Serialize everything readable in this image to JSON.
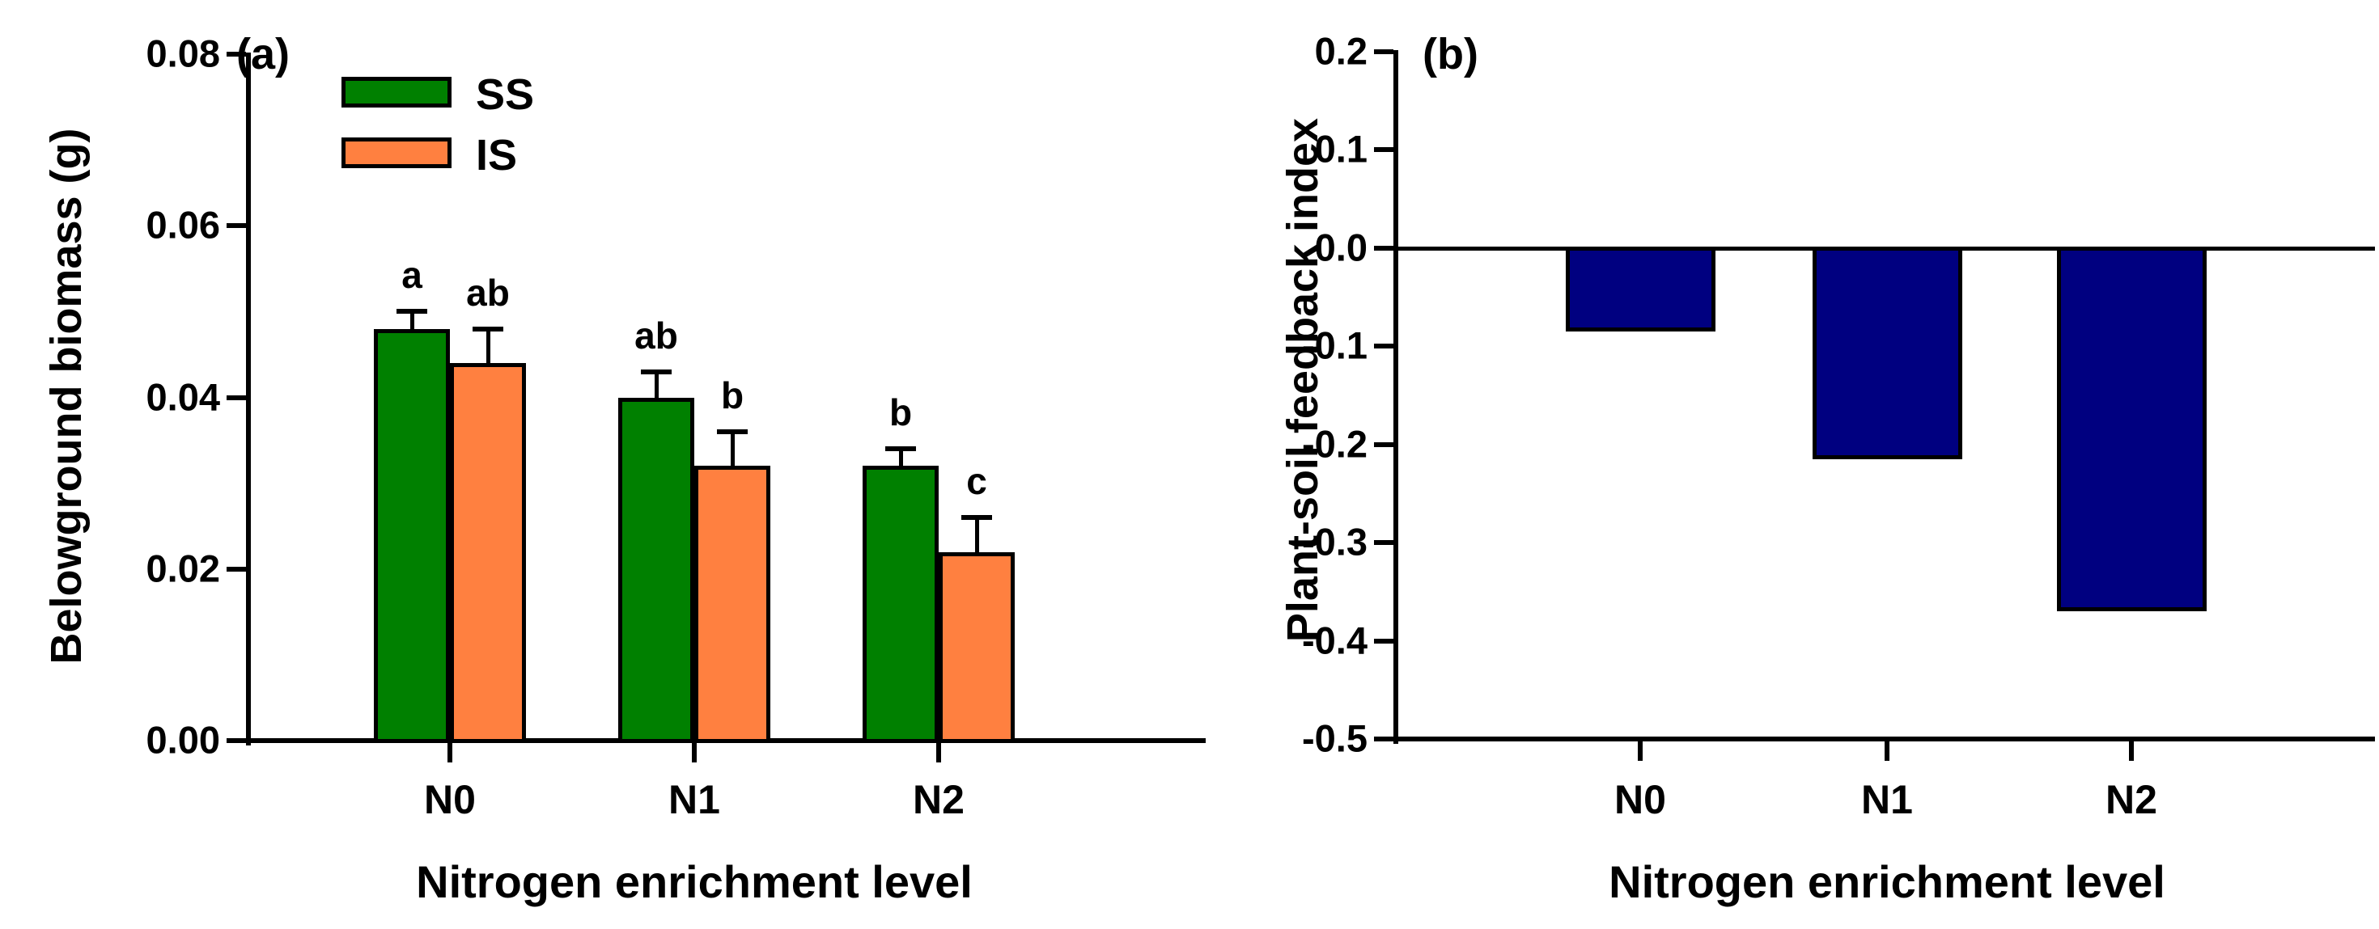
{
  "figure": {
    "background": "#ffffff",
    "colors": {
      "ss_green": "#008000",
      "is_orange": "#FF8040",
      "psf_navy": "#000080",
      "axis_black": "#000000"
    }
  },
  "chart_data": [
    {
      "id": "a",
      "type": "bar",
      "panel_label": "(a)",
      "xlabel": "Nitrogen enrichment level",
      "ylabel": "Belowground biomass (g)",
      "categories": [
        "N0",
        "N1",
        "N2"
      ],
      "series": [
        {
          "name": "SS",
          "color": "#008000",
          "values": [
            0.048,
            0.04,
            0.032
          ],
          "errors": [
            0.002,
            0.003,
            0.002
          ],
          "letters": [
            "a",
            "ab",
            "b"
          ]
        },
        {
          "name": "IS",
          "color": "#FF8040",
          "values": [
            0.044,
            0.032,
            0.022
          ],
          "errors": [
            0.004,
            0.004,
            0.004
          ],
          "letters": [
            "ab",
            "b",
            "c"
          ]
        }
      ],
      "ylim": [
        0,
        0.08
      ],
      "yticks": [
        {
          "v": 0.0,
          "label": "0.00"
        },
        {
          "v": 0.02,
          "label": "0.02"
        },
        {
          "v": 0.04,
          "label": "0.04"
        },
        {
          "v": 0.06,
          "label": "0.06"
        },
        {
          "v": 0.08,
          "label": "0.08"
        }
      ],
      "legend": {
        "position": "top-left-inside",
        "entries": [
          "SS",
          "IS"
        ]
      },
      "grid": false,
      "error_bars": "upper-only"
    },
    {
      "id": "b",
      "type": "bar",
      "panel_label": "(b)",
      "xlabel": "Nitrogen enrichment level",
      "ylabel": "Plant-soil feedback index",
      "categories": [
        "N0",
        "N1",
        "N2"
      ],
      "series": [
        {
          "name": "Plant-soil feedback index",
          "color": "#000080",
          "values": [
            -0.085,
            -0.215,
            -0.37
          ]
        }
      ],
      "ylim": [
        -0.5,
        0.2
      ],
      "yticks": [
        {
          "v": 0.2,
          "label": "0.2"
        },
        {
          "v": 0.1,
          "label": "0.1"
        },
        {
          "v": 0.0,
          "label": "0.0"
        },
        {
          "v": -0.1,
          "label": "-0.1"
        },
        {
          "v": -0.2,
          "label": "-0.2"
        },
        {
          "v": -0.3,
          "label": "-0.3"
        },
        {
          "v": -0.4,
          "label": "-0.4"
        },
        {
          "v": -0.5,
          "label": "-0.5"
        }
      ],
      "zero_line": true,
      "grid": false,
      "error_bars": "none"
    }
  ]
}
